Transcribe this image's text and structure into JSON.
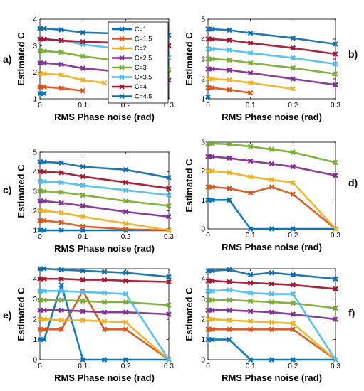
{
  "figure": {
    "background": "#ffffff"
  },
  "colors": {
    "C=1": "#0072BD",
    "C=1.5": "#D95319",
    "C=2": "#EDB120",
    "C=2.5": "#7E2F8E",
    "C=3": "#77AC30",
    "C=3.5": "#4DBEEE",
    "C=4": "#A2142F",
    "C=4.5": "#0E6DAD"
  },
  "chart_data": [
    {
      "panel_label": "a)",
      "type": "line",
      "xlabel": "RMS Phase noise (rad)",
      "ylabel": "Estimated C",
      "xlim": [
        0,
        0.3
      ],
      "ylim": [
        1,
        4
      ],
      "xticks": [
        "0",
        "0.1",
        "0.2",
        "0.3"
      ],
      "yticks": [
        "1",
        "2",
        "3",
        "4"
      ],
      "legend_position": "upper-center",
      "legend": [
        "C=1",
        "C=1.5",
        "C=2",
        "C=2.5",
        "C=3",
        "C=3.5",
        "C=4",
        "C=4.5"
      ],
      "series": [
        {
          "name": "C=1",
          "x": [
            0,
            0.01
          ],
          "y": [
            1.2,
            1.2
          ]
        },
        {
          "name": "C=1.5",
          "x": [
            0,
            0.01,
            0.05,
            0.1
          ],
          "y": [
            1.45,
            1.45,
            1.4,
            1.3
          ]
        },
        {
          "name": "C=2",
          "x": [
            0,
            0.01,
            0.05,
            0.1,
            0.15
          ],
          "y": [
            1.95,
            1.95,
            1.9,
            1.7,
            1.6
          ]
        },
        {
          "name": "C=2.5",
          "x": [
            0,
            0.01,
            0.05,
            0.1,
            0.2,
            0.3
          ],
          "y": [
            2.35,
            2.35,
            2.3,
            2.15,
            2.0,
            1.7
          ]
        },
        {
          "name": "C=3",
          "x": [
            0,
            0.01,
            0.05,
            0.1,
            0.2,
            0.3
          ],
          "y": [
            2.8,
            2.8,
            2.75,
            2.6,
            2.4,
            2.1
          ]
        },
        {
          "name": "C=3.5",
          "x": [
            0,
            0.01,
            0.05,
            0.1,
            0.2,
            0.3
          ],
          "y": [
            3.25,
            3.25,
            3.2,
            3.05,
            2.85,
            2.55
          ]
        },
        {
          "name": "C=4",
          "x": [
            0,
            0.01,
            0.05,
            0.1,
            0.2,
            0.3
          ],
          "y": [
            3.25,
            3.25,
            3.2,
            3.15,
            3.1,
            3.0
          ]
        },
        {
          "name": "C=4.5",
          "x": [
            0,
            0.01,
            0.05,
            0.1,
            0.2,
            0.3
          ],
          "y": [
            3.65,
            3.65,
            3.6,
            3.5,
            3.45,
            3.4
          ]
        }
      ]
    },
    {
      "panel_label": "b)",
      "type": "line",
      "xlabel": "RMS Phase noise (rad)",
      "ylabel": "Estimated C",
      "xlim": [
        0,
        0.3
      ],
      "ylim": [
        1,
        5
      ],
      "xticks": [
        "0",
        "0.1",
        "0.2",
        "0.3"
      ],
      "yticks": [
        "1",
        "2",
        "3",
        "4",
        "5"
      ],
      "series": [
        {
          "name": "C=1",
          "x": [
            0
          ],
          "y": [
            1.1
          ]
        },
        {
          "name": "C=1.5",
          "x": [
            0,
            0.01,
            0.05,
            0.1
          ],
          "y": [
            1.55,
            1.55,
            1.45,
            1.3
          ]
        },
        {
          "name": "C=2",
          "x": [
            0,
            0.01,
            0.05,
            0.1,
            0.2
          ],
          "y": [
            2.0,
            2.0,
            1.95,
            1.8,
            1.5
          ]
        },
        {
          "name": "C=2.5",
          "x": [
            0,
            0.01,
            0.05,
            0.1,
            0.2,
            0.3
          ],
          "y": [
            2.5,
            2.5,
            2.45,
            2.3,
            2.0,
            1.7
          ]
        },
        {
          "name": "C=3",
          "x": [
            0,
            0.01,
            0.05,
            0.1,
            0.2,
            0.3
          ],
          "y": [
            3.0,
            3.0,
            2.95,
            2.8,
            2.55,
            2.25
          ]
        },
        {
          "name": "C=3.5",
          "x": [
            0,
            0.01,
            0.05,
            0.1,
            0.2,
            0.3
          ],
          "y": [
            3.5,
            3.5,
            3.45,
            3.3,
            3.05,
            2.75
          ]
        },
        {
          "name": "C=4",
          "x": [
            0,
            0.01,
            0.05,
            0.1,
            0.2,
            0.3
          ],
          "y": [
            4.0,
            4.0,
            3.95,
            3.8,
            3.55,
            3.25
          ]
        },
        {
          "name": "C=4.5",
          "x": [
            0,
            0.01,
            0.05,
            0.1,
            0.2,
            0.3
          ],
          "y": [
            4.5,
            4.5,
            4.45,
            4.3,
            4.05,
            3.75
          ]
        }
      ]
    },
    {
      "panel_label": "c)",
      "type": "line",
      "xlabel": "RMS Phase noise (rad)",
      "ylabel": "Estimated C",
      "xlim": [
        0,
        0.3
      ],
      "ylim": [
        1,
        5
      ],
      "xticks": [
        "0",
        "0.1",
        "0.2",
        "0.3"
      ],
      "yticks": [
        "1",
        "2",
        "3",
        "4",
        "5"
      ],
      "series": [
        {
          "name": "C=1",
          "x": [
            0,
            0.01,
            0.05,
            0.1,
            0.2,
            0.3
          ],
          "y": [
            1.0,
            1.0,
            1.0,
            1.0,
            1.0,
            1.0
          ]
        },
        {
          "name": "C=1.5",
          "x": [
            0,
            0.01,
            0.05,
            0.1,
            0.2,
            0.3
          ],
          "y": [
            1.5,
            1.5,
            1.4,
            1.2,
            1.05,
            1.0
          ]
        },
        {
          "name": "C=2",
          "x": [
            0,
            0.01,
            0.05,
            0.1,
            0.2,
            0.3
          ],
          "y": [
            2.0,
            2.0,
            1.9,
            1.7,
            1.35,
            1.0
          ]
        },
        {
          "name": "C=2.5",
          "x": [
            0,
            0.01,
            0.05,
            0.1,
            0.2,
            0.3
          ],
          "y": [
            2.5,
            2.5,
            2.4,
            2.25,
            1.95,
            1.7
          ]
        },
        {
          "name": "C=3",
          "x": [
            0,
            0.01,
            0.05,
            0.1,
            0.2,
            0.3
          ],
          "y": [
            3.0,
            3.0,
            2.95,
            2.8,
            2.5,
            2.25
          ]
        },
        {
          "name": "C=3.5",
          "x": [
            0,
            0.01,
            0.05,
            0.1,
            0.2,
            0.3
          ],
          "y": [
            3.5,
            3.5,
            3.45,
            3.3,
            3.05,
            2.8
          ]
        },
        {
          "name": "C=4",
          "x": [
            0,
            0.01,
            0.05,
            0.1,
            0.2,
            0.3
          ],
          "y": [
            4.0,
            4.0,
            3.95,
            3.75,
            3.45,
            3.15
          ]
        },
        {
          "name": "C=4.5",
          "x": [
            0,
            0.01,
            0.05,
            0.1,
            0.2,
            0.3
          ],
          "y": [
            4.5,
            4.5,
            4.45,
            4.25,
            4.1,
            3.7
          ]
        }
      ]
    },
    {
      "panel_label": "d)",
      "type": "line",
      "xlabel": "RMS Phase noise (rad)",
      "ylabel": "Estimated C",
      "xlim": [
        0,
        0.3
      ],
      "ylim": [
        0,
        3
      ],
      "xticks": [
        "0",
        "0.1",
        "0.2",
        "0.3"
      ],
      "yticks": [
        "0",
        "1",
        "2",
        "3"
      ],
      "series": [
        {
          "name": "C=1",
          "x": [
            0,
            0.01,
            0.05,
            0.1,
            0.15,
            0.2,
            0.3
          ],
          "y": [
            1.0,
            1.0,
            1.0,
            0.0,
            0.0,
            0.0,
            0.0
          ]
        },
        {
          "name": "C=1.5",
          "x": [
            0,
            0.01,
            0.05,
            0.1,
            0.15,
            0.2,
            0.3
          ],
          "y": [
            1.45,
            1.45,
            1.4,
            1.25,
            1.45,
            1.2,
            0.0
          ]
        },
        {
          "name": "C=2",
          "x": [
            0,
            0.01,
            0.05,
            0.1,
            0.15,
            0.2,
            0.3
          ],
          "y": [
            2.0,
            2.0,
            1.95,
            1.8,
            1.7,
            1.6,
            0.0
          ]
        },
        {
          "name": "C=2.5",
          "x": [
            0,
            0.01,
            0.05,
            0.1,
            0.15,
            0.2,
            0.3
          ],
          "y": [
            2.5,
            2.5,
            2.45,
            2.35,
            2.25,
            2.15,
            1.85
          ]
        },
        {
          "name": "C=3",
          "x": [
            0,
            0.01,
            0.05,
            0.1,
            0.15,
            0.2,
            0.3
          ],
          "y": [
            2.95,
            2.95,
            2.93,
            2.85,
            2.75,
            2.65,
            2.3
          ]
        }
      ]
    },
    {
      "panel_label": "e)",
      "type": "line",
      "xlabel": "RMS Phase noise (rad)",
      "ylabel": "Estimated C",
      "xlim": [
        0,
        0.3
      ],
      "ylim": [
        0,
        4.5
      ],
      "xticks": [
        "0",
        "0.1",
        "0.2",
        "0.3"
      ],
      "yticks": [
        "0",
        "1",
        "2",
        "3",
        "4"
      ],
      "series": [
        {
          "name": "C=1",
          "x": [
            0,
            0.01,
            0.05,
            0.1,
            0.15,
            0.2,
            0.3
          ],
          "y": [
            1.0,
            1.0,
            3.7,
            0.0,
            0.0,
            0.0,
            0.0
          ]
        },
        {
          "name": "C=1.5",
          "x": [
            0,
            0.01,
            0.05,
            0.1,
            0.15,
            0.2,
            0.3
          ],
          "y": [
            1.5,
            1.5,
            1.5,
            3.4,
            1.5,
            1.5,
            0.0
          ]
        },
        {
          "name": "C=2",
          "x": [
            0,
            0.01,
            0.05,
            0.1,
            0.15,
            0.2,
            0.3
          ],
          "y": [
            2.0,
            2.0,
            1.95,
            1.95,
            1.9,
            1.85,
            0.0
          ]
        },
        {
          "name": "C=2.5",
          "x": [
            0,
            0.01,
            0.05,
            0.1,
            0.15,
            0.2,
            0.3
          ],
          "y": [
            2.45,
            2.45,
            2.45,
            2.4,
            2.35,
            2.35,
            2.25
          ]
        },
        {
          "name": "C=3",
          "x": [
            0,
            0.01,
            0.05,
            0.1,
            0.15,
            0.2,
            0.3
          ],
          "y": [
            2.95,
            2.95,
            2.95,
            2.9,
            2.85,
            2.85,
            2.7
          ]
        },
        {
          "name": "C=3.5",
          "x": [
            0,
            0.01,
            0.05,
            0.1,
            0.15,
            0.2,
            0.3
          ],
          "y": [
            3.4,
            3.4,
            3.4,
            3.35,
            3.3,
            3.25,
            0.0
          ]
        },
        {
          "name": "C=4",
          "x": [
            0,
            0.01,
            0.05,
            0.1,
            0.15,
            0.2,
            0.3
          ],
          "y": [
            4.0,
            4.0,
            4.0,
            3.95,
            3.95,
            3.9,
            3.85
          ]
        },
        {
          "name": "C=4.5",
          "x": [
            0,
            0.01,
            0.05,
            0.1,
            0.15,
            0.2,
            0.3
          ],
          "y": [
            4.5,
            4.5,
            4.45,
            4.4,
            4.35,
            4.3,
            4.1
          ]
        }
      ]
    },
    {
      "panel_label": "f)",
      "type": "line",
      "xlabel": "RMS Phase noise (rad)",
      "ylabel": "Estimated C",
      "xlim": [
        0,
        0.3
      ],
      "ylim": [
        0,
        4.5
      ],
      "xticks": [
        "0",
        "0.1",
        "0.2",
        "0.3"
      ],
      "yticks": [
        "0",
        "1",
        "2",
        "3",
        "4"
      ],
      "series": [
        {
          "name": "C=1",
          "x": [
            0,
            0.01,
            0.05,
            0.1,
            0.15,
            0.2,
            0.3
          ],
          "y": [
            1.0,
            1.0,
            1.0,
            0.0,
            0.0,
            0.0,
            0.0
          ]
        },
        {
          "name": "C=1.5",
          "x": [
            0,
            0.01,
            0.05,
            0.1,
            0.15,
            0.2,
            0.3
          ],
          "y": [
            1.5,
            1.5,
            1.5,
            1.5,
            1.5,
            1.5,
            0.0
          ]
        },
        {
          "name": "C=2",
          "x": [
            0,
            0.01,
            0.05,
            0.1,
            0.15,
            0.2,
            0.3
          ],
          "y": [
            2.0,
            2.0,
            1.95,
            1.9,
            1.85,
            1.8,
            0.0
          ]
        },
        {
          "name": "C=2.5",
          "x": [
            0,
            0.01,
            0.05,
            0.1,
            0.15,
            0.2,
            0.3
          ],
          "y": [
            2.45,
            2.45,
            2.45,
            2.4,
            2.35,
            2.25,
            2.0
          ]
        },
        {
          "name": "C=3",
          "x": [
            0,
            0.01,
            0.05,
            0.1,
            0.15,
            0.2,
            0.3
          ],
          "y": [
            2.95,
            2.95,
            2.95,
            2.9,
            2.85,
            2.8,
            2.55
          ]
        },
        {
          "name": "C=3.5",
          "x": [
            0,
            0.01,
            0.05,
            0.1,
            0.15,
            0.2,
            0.3
          ],
          "y": [
            3.4,
            3.4,
            3.45,
            3.3,
            3.25,
            3.25,
            0.0
          ]
        },
        {
          "name": "C=4",
          "x": [
            0,
            0.01,
            0.05,
            0.1,
            0.15,
            0.2,
            0.3
          ],
          "y": [
            3.9,
            3.9,
            3.85,
            3.8,
            3.75,
            3.7,
            3.5
          ]
        },
        {
          "name": "C=4.5",
          "x": [
            0,
            0.01,
            0.05,
            0.1,
            0.15,
            0.2,
            0.3
          ],
          "y": [
            4.4,
            4.4,
            4.45,
            4.2,
            4.3,
            4.2,
            4.0
          ]
        }
      ]
    }
  ]
}
